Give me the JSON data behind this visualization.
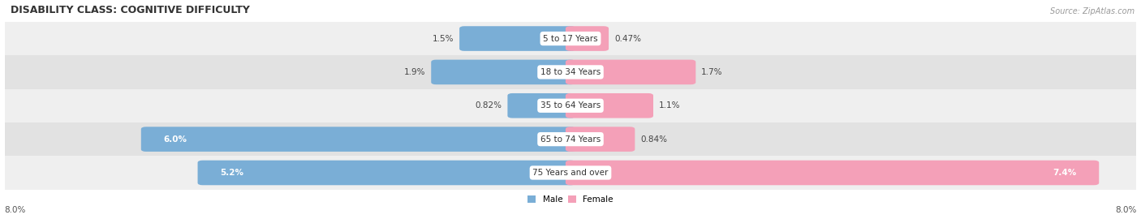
{
  "title": "DISABILITY CLASS: COGNITIVE DIFFICULTY",
  "source": "Source: ZipAtlas.com",
  "categories": [
    "5 to 17 Years",
    "18 to 34 Years",
    "35 to 64 Years",
    "65 to 74 Years",
    "75 Years and over"
  ],
  "male_values": [
    1.5,
    1.9,
    0.82,
    6.0,
    5.2
  ],
  "female_values": [
    0.47,
    1.7,
    1.1,
    0.84,
    7.4
  ],
  "male_color": "#7aaed6",
  "female_color": "#f4a0b8",
  "row_bg_colors": [
    "#efefef",
    "#e2e2e2"
  ],
  "x_max": 8.0,
  "x_min": -8.0,
  "axis_label_left": "8.0%",
  "axis_label_right": "8.0%",
  "title_fontsize": 9,
  "source_fontsize": 7,
  "label_fontsize": 7.5,
  "bar_label_fontsize": 7.5,
  "category_fontsize": 7.5,
  "bar_height": 0.6,
  "background_color": "#ffffff",
  "male_label_inside_threshold": 2.5,
  "female_label_inside_threshold": 2.5
}
